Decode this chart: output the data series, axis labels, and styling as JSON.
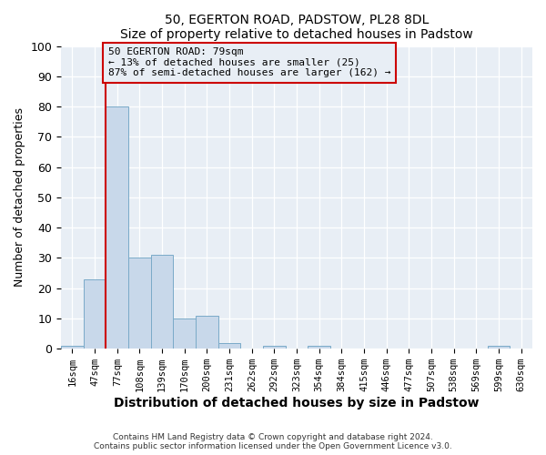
{
  "title1": "50, EGERTON ROAD, PADSTOW, PL28 8DL",
  "title2": "Size of property relative to detached houses in Padstow",
  "xlabel": "Distribution of detached houses by size in Padstow",
  "ylabel": "Number of detached properties",
  "bin_labels": [
    "16sqm",
    "47sqm",
    "77sqm",
    "108sqm",
    "139sqm",
    "170sqm",
    "200sqm",
    "231sqm",
    "262sqm",
    "292sqm",
    "323sqm",
    "354sqm",
    "384sqm",
    "415sqm",
    "446sqm",
    "477sqm",
    "507sqm",
    "538sqm",
    "569sqm",
    "599sqm",
    "630sqm"
  ],
  "bar_heights": [
    1,
    23,
    80,
    30,
    31,
    10,
    11,
    2,
    0,
    1,
    0,
    1,
    0,
    0,
    0,
    0,
    0,
    0,
    0,
    1,
    0
  ],
  "bar_color": "#c8d8ea",
  "bar_edge_color": "#7aaac8",
  "ylim": [
    0,
    100
  ],
  "yticks": [
    0,
    10,
    20,
    30,
    40,
    50,
    60,
    70,
    80,
    90,
    100
  ],
  "property_line_color": "#cc0000",
  "annotation_text": "50 EGERTON ROAD: 79sqm\n← 13% of detached houses are smaller (25)\n87% of semi-detached houses are larger (162) →",
  "annotation_box_edge": "#cc0000",
  "footer1": "Contains HM Land Registry data © Crown copyright and database right 2024.",
  "footer2": "Contains public sector information licensed under the Open Government Licence v3.0.",
  "bg_color": "#ffffff",
  "plot_bg_color": "#e8eef5",
  "grid_color": "#ffffff"
}
